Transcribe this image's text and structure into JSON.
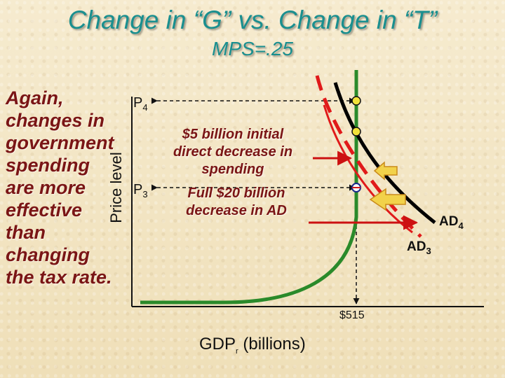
{
  "title": "Change in “G” vs. Change in “T”",
  "subtitle": "MPS=.25",
  "side_text": [
    "Again,",
    "changes in",
    "government",
    "spending",
    "are more",
    "effective",
    "than",
    "changing",
    "the tax rate."
  ],
  "axes": {
    "y_label": "Price level",
    "x_label_main": "GDP",
    "x_label_sub": "r",
    "x_label_rest": " (billions)"
  },
  "price_labels": {
    "p4": {
      "main": "P",
      "sub": "4"
    },
    "p3": {
      "main": "P",
      "sub": "3"
    }
  },
  "x_tick": "$515",
  "annotation_1": [
    "$5 billion initial",
    "direct decrease in",
    "spending"
  ],
  "annotation_2": [
    "Full $20 billion",
    "decrease in AD"
  ],
  "curve_labels": {
    "ad4": {
      "main": "AD",
      "sub": "4"
    },
    "ad3": {
      "main": "AD",
      "sub": "3"
    }
  },
  "colors": {
    "title": "#1a8f8f",
    "side_text": "#7a1515",
    "ad4": "#000000",
    "ad3": "#e01a1a",
    "as": "#2a8a2a",
    "arrow": "#cc1111",
    "pointer_fill": "#f2d24a",
    "pointer_stroke": "#c98a1a"
  },
  "icons": [
    "yellow-dot",
    "white-dot",
    "yellow-pointer-arrow",
    "red-arrowhead"
  ]
}
